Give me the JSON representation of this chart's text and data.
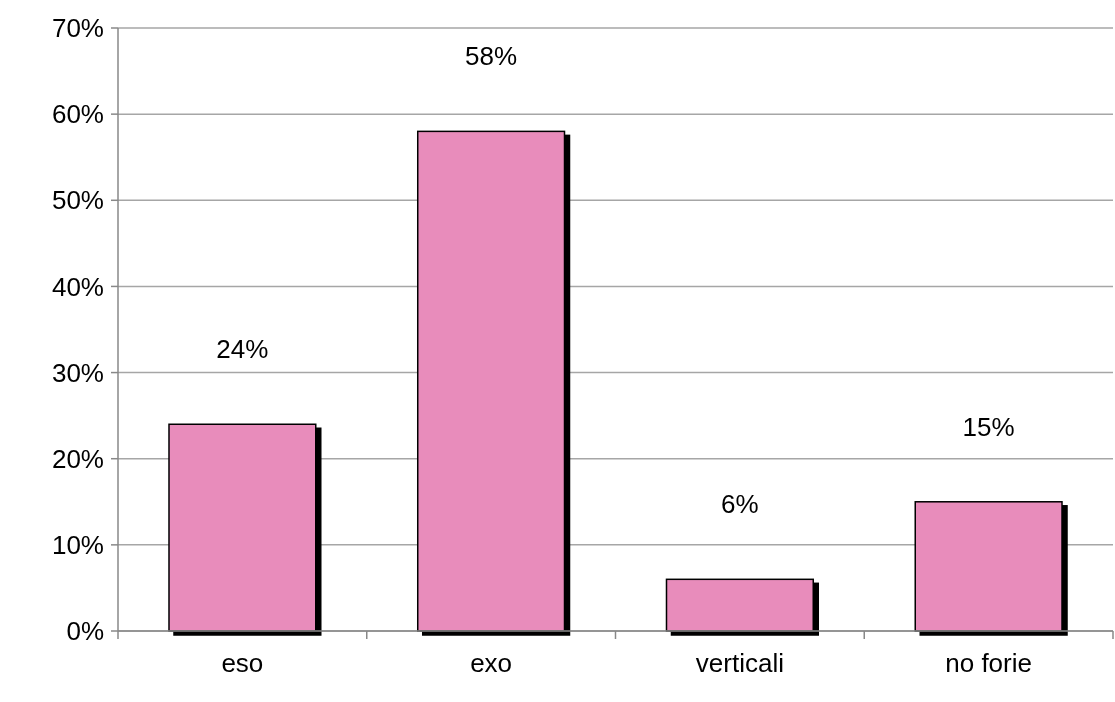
{
  "chart_data": {
    "type": "bar",
    "categories": [
      "eso",
      "exo",
      "verticali",
      "no forie"
    ],
    "values": [
      24,
      58,
      6,
      15
    ],
    "color": "#e88cbb",
    "value_labels": [
      "24%",
      "58%",
      "6%",
      "15%"
    ],
    "ylim": [
      0,
      70
    ],
    "yticks": [
      {
        "value": 0,
        "label": "0%"
      },
      {
        "value": 10,
        "label": "10%"
      },
      {
        "value": 20,
        "label": "20%"
      },
      {
        "value": 30,
        "label": "30%"
      },
      {
        "value": 40,
        "label": "40%"
      },
      {
        "value": 50,
        "label": "50%"
      },
      {
        "value": 60,
        "label": "60%"
      },
      {
        "value": 70,
        "label": "70%"
      }
    ],
    "grid": "y"
  }
}
